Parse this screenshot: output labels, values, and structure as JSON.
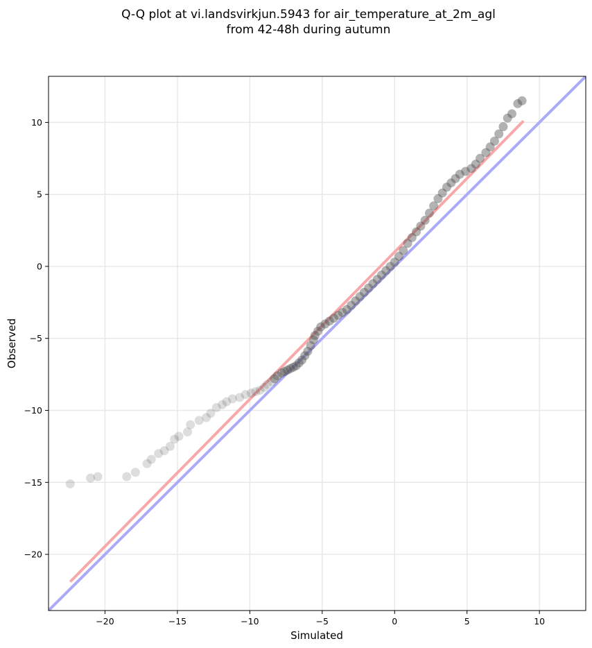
{
  "chart_data": {
    "type": "scatter",
    "title_lines": [
      "Q-Q plot at vi.landsvirkjun.5943 for air_temperature_at_2m_agl",
      "from 42-48h during autumn"
    ],
    "xlabel": "Simulated",
    "ylabel": "Observed",
    "xlim": [
      -23.9,
      13.2
    ],
    "ylim": [
      -23.9,
      13.2
    ],
    "xticks": [
      -20,
      -15,
      -10,
      -5,
      0,
      5,
      10
    ],
    "yticks": [
      -20,
      -15,
      -10,
      -5,
      0,
      5,
      10
    ],
    "xtick_labels": [
      "−20",
      "−15",
      "−10",
      "−5",
      "0",
      "5",
      "10"
    ],
    "ytick_labels": [
      "−20",
      "−15",
      "−10",
      "−5",
      "0",
      "5",
      "10"
    ],
    "grid": true,
    "lines": [
      {
        "role": "one-to-one",
        "color": "#aaaaf8",
        "points": [
          [
            -23.9,
            -23.9
          ],
          [
            13.2,
            13.2
          ]
        ]
      },
      {
        "role": "fit",
        "color": "#f8a8a8",
        "points": [
          [
            -22.4,
            -21.9
          ],
          [
            8.9,
            10.1
          ]
        ]
      }
    ],
    "points": [
      [
        -22.4,
        -15.1
      ],
      [
        -21.0,
        -14.7
      ],
      [
        -20.5,
        -14.6
      ],
      [
        -18.5,
        -14.6
      ],
      [
        -17.9,
        -14.3
      ],
      [
        -17.1,
        -13.7
      ],
      [
        -16.8,
        -13.4
      ],
      [
        -16.3,
        -13.0
      ],
      [
        -15.9,
        -12.8
      ],
      [
        -15.5,
        -12.5
      ],
      [
        -15.2,
        -12.0
      ],
      [
        -14.9,
        -11.8
      ],
      [
        -14.3,
        -11.5
      ],
      [
        -14.1,
        -11.0
      ],
      [
        -13.5,
        -10.7
      ],
      [
        -13.0,
        -10.5
      ],
      [
        -12.7,
        -10.2
      ],
      [
        -12.3,
        -9.8
      ],
      [
        -11.9,
        -9.6
      ],
      [
        -11.6,
        -9.4
      ],
      [
        -11.2,
        -9.2
      ],
      [
        -10.7,
        -9.1
      ],
      [
        -10.3,
        -8.9
      ],
      [
        -9.9,
        -8.8
      ],
      [
        -9.6,
        -8.7
      ],
      [
        -9.3,
        -8.6
      ],
      [
        -9.0,
        -8.4
      ],
      [
        -8.8,
        -8.2
      ],
      [
        -8.5,
        -8.0
      ],
      [
        -8.3,
        -7.8
      ],
      [
        -8.1,
        -7.6
      ],
      [
        -7.8,
        -7.4
      ],
      [
        -7.6,
        -7.3
      ],
      [
        -7.4,
        -7.2
      ],
      [
        -7.2,
        -7.1
      ],
      [
        -7.0,
        -7.0
      ],
      [
        -6.8,
        -6.9
      ],
      [
        -6.6,
        -6.7
      ],
      [
        -6.4,
        -6.5
      ],
      [
        -6.2,
        -6.2
      ],
      [
        -6.0,
        -5.9
      ],
      [
        -5.8,
        -5.5
      ],
      [
        -5.6,
        -5.1
      ],
      [
        -5.5,
        -4.8
      ],
      [
        -5.3,
        -4.5
      ],
      [
        -5.1,
        -4.2
      ],
      [
        -4.8,
        -4.0
      ],
      [
        -4.5,
        -3.8
      ],
      [
        -4.2,
        -3.6
      ],
      [
        -3.9,
        -3.4
      ],
      [
        -3.6,
        -3.2
      ],
      [
        -3.3,
        -3.0
      ],
      [
        -3.0,
        -2.7
      ],
      [
        -2.7,
        -2.4
      ],
      [
        -2.4,
        -2.1
      ],
      [
        -2.1,
        -1.8
      ],
      [
        -1.8,
        -1.5
      ],
      [
        -1.5,
        -1.2
      ],
      [
        -1.2,
        -0.9
      ],
      [
        -0.9,
        -0.6
      ],
      [
        -0.6,
        -0.3
      ],
      [
        -0.3,
        0.0
      ],
      [
        0.0,
        0.3
      ],
      [
        0.3,
        0.7
      ],
      [
        0.6,
        1.1
      ],
      [
        0.9,
        1.6
      ],
      [
        1.2,
        2.0
      ],
      [
        1.5,
        2.4
      ],
      [
        1.8,
        2.8
      ],
      [
        2.1,
        3.2
      ],
      [
        2.4,
        3.7
      ],
      [
        2.7,
        4.2
      ],
      [
        3.0,
        4.7
      ],
      [
        3.3,
        5.1
      ],
      [
        3.6,
        5.5
      ],
      [
        3.9,
        5.8
      ],
      [
        4.2,
        6.1
      ],
      [
        4.5,
        6.4
      ],
      [
        4.9,
        6.6
      ],
      [
        5.3,
        6.8
      ],
      [
        5.6,
        7.1
      ],
      [
        5.9,
        7.5
      ],
      [
        6.3,
        7.9
      ],
      [
        6.6,
        8.3
      ],
      [
        6.9,
        8.7
      ],
      [
        7.2,
        9.2
      ],
      [
        7.5,
        9.7
      ],
      [
        7.8,
        10.3
      ],
      [
        8.1,
        10.6
      ],
      [
        8.5,
        11.3
      ],
      [
        8.8,
        11.5
      ]
    ]
  }
}
